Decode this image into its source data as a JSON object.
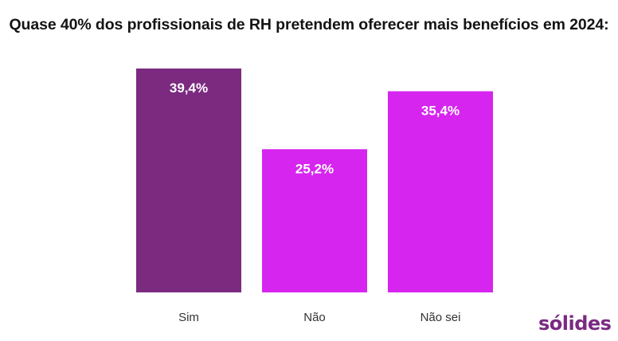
{
  "chart_data": {
    "type": "bar",
    "title": "Quase 40% dos profissionais de RH pretendem oferecer mais benefícios em 2024:",
    "categories": [
      "Sim",
      "Não",
      "Não sei"
    ],
    "values": [
      39.4,
      25.2,
      35.4
    ],
    "data_labels": [
      "39,4%",
      "25,2%",
      "35,4%"
    ],
    "colors": [
      "#7b2a80",
      "#d625ef",
      "#d625ef"
    ],
    "ylim": [
      0,
      39.4
    ],
    "grid": false,
    "legend": "none",
    "xlabel": "",
    "ylabel": ""
  },
  "brand": {
    "logo_text": "sólides",
    "color": "#7a2a82"
  }
}
